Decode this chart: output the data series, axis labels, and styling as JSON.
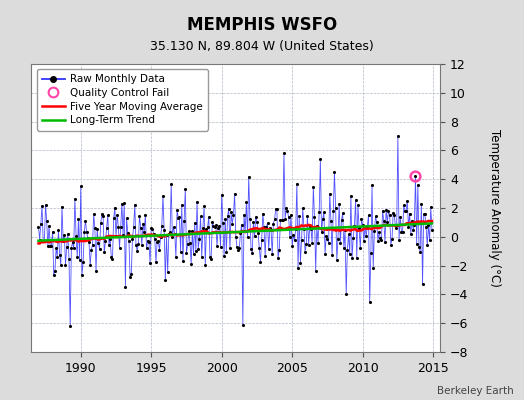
{
  "title": "MEMPHIS WSFO",
  "subtitle": "35.130 N, 89.804 W (United States)",
  "ylabel": "Temperature Anomaly (°C)",
  "credit": "Berkeley Earth",
  "xlim": [
    1986.5,
    2015.5
  ],
  "ylim": [
    -8,
    12
  ],
  "yticks": [
    -8,
    -6,
    -4,
    -2,
    0,
    2,
    4,
    6,
    8,
    10,
    12
  ],
  "xticks": [
    1990,
    1995,
    2000,
    2005,
    2010,
    2015
  ],
  "bg_color": "#dcdcdc",
  "plot_bg_color": "#ffffff",
  "grid_color": "#b0b8c8",
  "raw_line_color": "#3333ff",
  "raw_marker_color": "#000000",
  "moving_avg_color": "#ff0000",
  "trend_color": "#00bb00",
  "qc_fail_color": "#ff44aa",
  "qc_fail_x": 2013.75,
  "qc_fail_y": 4.2,
  "seed": 42
}
